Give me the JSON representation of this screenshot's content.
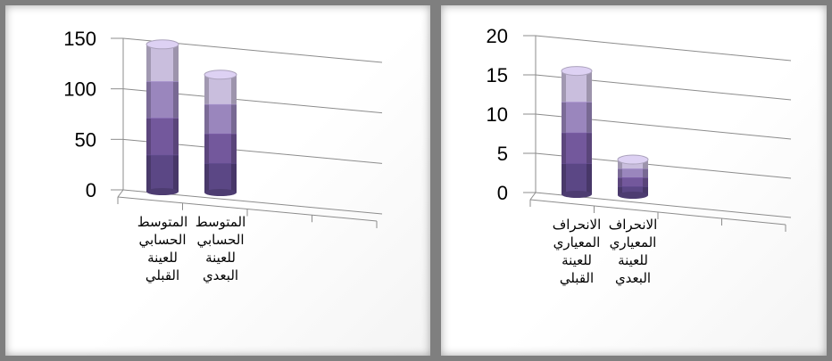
{
  "chart_data": [
    {
      "type": "bar",
      "style": "3d-stacked-column",
      "categories": [
        [
          "المتوسط",
          "الحسابي",
          "للعينة",
          "القبلي"
        ],
        [
          "المتوسط",
          "الحسابي",
          "للعينة",
          "البعدي"
        ]
      ],
      "values": [
        144,
        114
      ],
      "ylim": [
        0,
        150
      ],
      "yticks": [
        0,
        50,
        100,
        150
      ],
      "grid": true,
      "colors": [
        "#5b4785",
        "#73589c",
        "#9a86bd",
        "#c9bedd"
      ]
    },
    {
      "type": "bar",
      "style": "3d-stacked-column",
      "categories": [
        [
          "الانحراف",
          "المعياري",
          "للعينة",
          "القبلي"
        ],
        [
          "الانحراف",
          "المعياري",
          "للعينة",
          "البعدي"
        ]
      ],
      "values": [
        15.5,
        4.2
      ],
      "ylim": [
        0,
        20
      ],
      "yticks": [
        0,
        5,
        10,
        15,
        20
      ],
      "grid": true,
      "colors": [
        "#5b4785",
        "#73589c",
        "#9a86bd",
        "#c9bedd"
      ]
    }
  ]
}
